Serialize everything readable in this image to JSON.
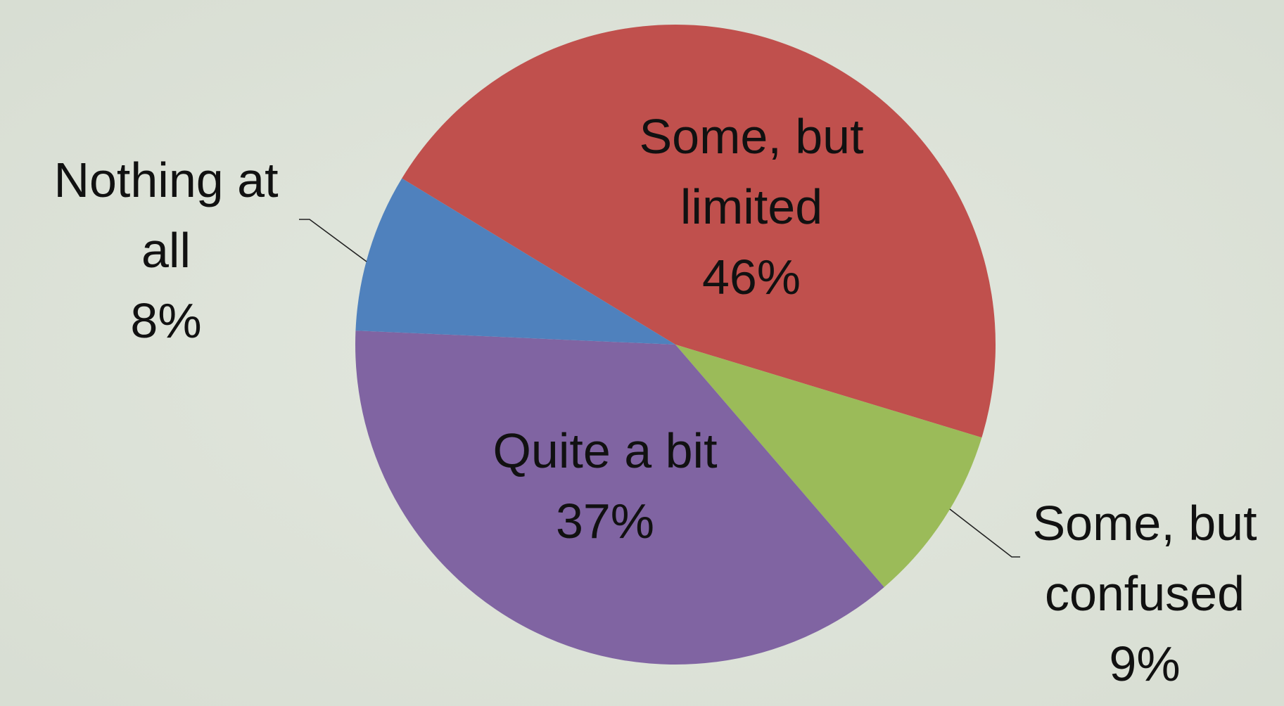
{
  "chart_data": {
    "type": "pie",
    "title": "",
    "slices": [
      {
        "label": "Some, but limited",
        "value": 46,
        "pct_text": "46%",
        "color": "#c0504d"
      },
      {
        "label": "Some, but confused",
        "value": 9,
        "pct_text": "9%",
        "color": "#9bbb59"
      },
      {
        "label": "Quite a bit",
        "value": 37,
        "pct_text": "37%",
        "color": "#8064a2"
      },
      {
        "label": "Nothing at all",
        "value": 8,
        "pct_text": "8%",
        "color": "#4f81bd"
      }
    ],
    "label_lines": [
      [
        "Some, but",
        "limited",
        "46%"
      ],
      [
        "Some, but",
        "confused",
        "9%"
      ],
      [
        "Quite a bit",
        "37%"
      ],
      [
        "Nothing at",
        "all",
        "8%"
      ]
    ],
    "legend": "none"
  }
}
